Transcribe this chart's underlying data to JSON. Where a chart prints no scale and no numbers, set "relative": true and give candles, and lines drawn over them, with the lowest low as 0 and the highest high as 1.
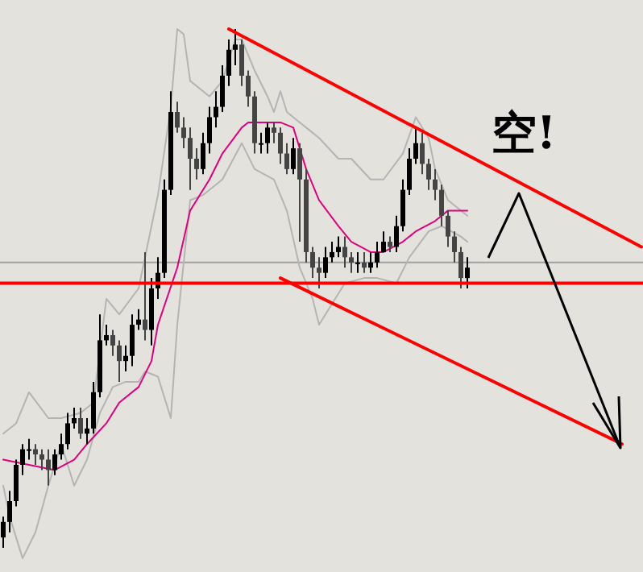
{
  "chart_data": {
    "type": "candlestick",
    "relative": true,
    "categories": [
      null,
      null,
      null,
      null,
      null,
      null,
      null,
      null,
      null,
      null,
      null,
      null,
      null,
      null,
      null,
      null,
      null,
      null,
      null,
      null,
      null,
      null,
      null,
      null,
      null,
      null,
      null,
      null,
      null,
      null,
      null,
      null,
      null,
      null,
      null,
      null,
      null,
      null,
      null,
      null,
      null,
      null,
      null,
      null,
      null,
      null,
      null,
      null,
      null,
      null,
      null,
      null,
      null,
      null,
      null,
      null,
      null,
      null,
      null,
      null,
      null,
      null,
      null,
      null,
      null,
      null,
      null,
      null,
      null,
      null,
      null,
      null,
      null,
      null,
      null,
      null,
      null,
      null,
      null,
      null,
      null,
      null,
      null,
      null,
      null,
      null,
      null,
      null,
      null,
      null,
      null,
      null,
      null,
      null,
      null,
      null,
      null,
      null,
      null,
      null
    ],
    "colors": [
      "#000000",
      "#000000",
      "#000000",
      "#000000",
      "#000000",
      "#444444",
      "#444444",
      "#444444",
      "#000000",
      "#000000",
      "#000000",
      "#000000",
      "#444444",
      "#000000",
      "#000000",
      "#000000",
      "#000000",
      "#444444",
      "#444444",
      "#000000",
      "#000000",
      "#000000",
      "#444444",
      "#000000",
      "#000000",
      "#000000",
      "#000000",
      "#444444",
      "#444444",
      "#444444",
      "#444444",
      "#000000",
      "#000000",
      "#000000",
      "#000000",
      "#000000",
      "#000000",
      "#444444",
      "#444444",
      "#444444",
      "#000000",
      "#000000",
      "#444444",
      "#444444",
      "#444444",
      "#000000",
      "#444444",
      "#444444",
      "#444444",
      "#444444",
      "#000000",
      "#000000",
      "#000000",
      "#444444",
      "#444444",
      "#000000",
      "#444444",
      "#000000",
      "#000000",
      "#000000",
      "#444444",
      "#000000",
      "#000000",
      "#000000",
      "#000000",
      "#444444",
      "#444444",
      "#444444",
      "#444444",
      "#444444",
      "#444444",
      "#444444",
      "#000000",
      null,
      null,
      null,
      null,
      null,
      null,
      null,
      null,
      null,
      null,
      null,
      null,
      null,
      null,
      null,
      null,
      null,
      null,
      null,
      null,
      null,
      null,
      null,
      null,
      null,
      null,
      null
    ],
    "ohlc": [
      [
        0.02,
        0.06,
        0,
        0.05
      ],
      [
        0.05,
        0.11,
        0.03,
        0.09
      ],
      [
        0.09,
        0.17,
        0.08,
        0.16
      ],
      [
        0.16,
        0.2,
        0.14,
        0.19
      ],
      [
        0.19,
        0.21,
        0.17,
        0.19
      ],
      [
        0.19,
        0.2,
        0.16,
        0.18
      ],
      [
        0.18,
        0.19,
        0.15,
        0.17
      ],
      [
        0.17,
        0.19,
        0.12,
        0.15
      ],
      [
        0.15,
        0.19,
        0.14,
        0.18
      ],
      [
        0.18,
        0.22,
        0.17,
        0.2
      ],
      [
        0.2,
        0.26,
        0.19,
        0.24
      ],
      [
        0.24,
        0.27,
        0.23,
        0.25
      ],
      [
        0.25,
        0.27,
        0.21,
        0.22
      ],
      [
        0.22,
        0.25,
        0.2,
        0.23
      ],
      [
        0.23,
        0.32,
        0.22,
        0.3
      ],
      [
        0.3,
        0.45,
        0.29,
        0.4
      ],
      [
        0.4,
        0.43,
        0.39,
        0.41
      ],
      [
        0.41,
        0.42,
        0.37,
        0.39
      ],
      [
        0.39,
        0.4,
        0.32,
        0.36
      ],
      [
        0.36,
        0.39,
        0.34,
        0.37
      ],
      [
        0.37,
        0.45,
        0.35,
        0.43
      ],
      [
        0.43,
        0.46,
        0.42,
        0.44
      ],
      [
        0.44,
        0.57,
        0.4,
        0.42
      ],
      [
        0.42,
        0.52,
        0.39,
        0.5
      ],
      [
        0.5,
        0.56,
        0.48,
        0.53
      ],
      [
        0.53,
        0.71,
        0.52,
        0.69
      ],
      [
        0.69,
        0.88,
        0.68,
        0.84
      ],
      [
        0.84,
        0.86,
        0.8,
        0.81
      ],
      [
        0.81,
        0.83,
        0.77,
        0.79
      ],
      [
        0.79,
        0.81,
        0.69,
        0.75
      ],
      [
        0.75,
        0.77,
        0.71,
        0.73
      ],
      [
        0.73,
        0.8,
        0.72,
        0.78
      ],
      [
        0.78,
        0.85,
        0.76,
        0.83
      ],
      [
        0.83,
        0.88,
        0.81,
        0.85
      ],
      [
        0.85,
        0.93,
        0.84,
        0.91
      ],
      [
        0.91,
        0.98,
        0.89,
        0.96
      ],
      [
        0.96,
        1,
        0.93,
        0.97
      ],
      [
        0.97,
        0.98,
        0.89,
        0.91
      ],
      [
        0.91,
        0.92,
        0.85,
        0.87
      ],
      [
        0.87,
        0.88,
        0.76,
        0.78
      ],
      [
        0.78,
        0.8,
        0.76,
        0.78
      ],
      [
        0.78,
        0.82,
        0.76,
        0.81
      ],
      [
        0.81,
        0.82,
        0.78,
        0.8
      ],
      [
        0.8,
        0.81,
        0.74,
        0.76
      ],
      [
        0.76,
        0.78,
        0.72,
        0.73
      ],
      [
        0.73,
        0.79,
        0.72,
        0.77
      ],
      [
        0.77,
        0.78,
        0.59,
        0.71
      ],
      [
        0.71,
        0.73,
        0.55,
        0.57
      ],
      [
        0.57,
        0.58,
        0.52,
        0.54
      ],
      [
        0.54,
        0.56,
        0.5,
        0.53
      ],
      [
        0.53,
        0.58,
        0.52,
        0.56
      ],
      [
        0.56,
        0.59,
        0.55,
        0.57
      ],
      [
        0.57,
        0.6,
        0.56,
        0.58
      ],
      [
        0.58,
        0.6,
        0.54,
        0.56
      ],
      [
        0.56,
        0.57,
        0.53,
        0.55
      ],
      [
        0.55,
        0.57,
        0.53,
        0.55
      ],
      [
        0.55,
        0.57,
        0.53,
        0.54
      ],
      [
        0.54,
        0.57,
        0.53,
        0.55
      ],
      [
        0.55,
        0.59,
        0.54,
        0.57
      ],
      [
        0.57,
        0.61,
        0.57,
        0.59
      ],
      [
        0.59,
        0.6,
        0.57,
        0.58
      ],
      [
        0.58,
        0.64,
        0.57,
        0.62
      ],
      [
        0.62,
        0.71,
        0.61,
        0.69
      ],
      [
        0.69,
        0.77,
        0.68,
        0.75
      ],
      [
        0.75,
        0.81,
        0.74,
        0.78
      ],
      [
        0.78,
        0.8,
        0.72,
        0.74
      ],
      [
        0.74,
        0.75,
        0.69,
        0.71
      ],
      [
        0.71,
        0.73,
        0.67,
        0.69
      ],
      [
        0.69,
        0.7,
        0.62,
        0.64
      ],
      [
        0.64,
        0.65,
        0.58,
        0.6
      ],
      [
        0.6,
        0.61,
        0.55,
        0.57
      ],
      [
        0.57,
        0.58,
        0.5,
        0.52
      ],
      [
        0.52,
        0.56,
        0.5,
        0.54
      ],
      null,
      null,
      null,
      null,
      null,
      null,
      null,
      null,
      null,
      null,
      null,
      null,
      null,
      null,
      null,
      null,
      null,
      null,
      null,
      null,
      null,
      null,
      null,
      null,
      null,
      null,
      null
    ],
    "series": [
      {
        "type": "line",
        "color": "#b4b4b4",
        "values": [
          0.22,
          null,
          0.24,
          null,
          0.3,
          null,
          null,
          0.25,
          null,
          0.25,
          null,
          null,
          0.26,
          null,
          0.28,
          null,
          0.48,
          null,
          0.45,
          null,
          null,
          0.5,
          null,
          0.62,
          0.68,
          null,
          0.85,
          1,
          0.99,
          0.9,
          null,
          null,
          0.87,
          null,
          0.9,
          null,
          0.98,
          0.98,
          null,
          0.92,
          null,
          0.87,
          0.84,
          0.88,
          0.84,
          null,
          0.82,
          0.81,
          null,
          0.79,
          null,
          null,
          0.75,
          null,
          0.75,
          null,
          null,
          0.71,
          null,
          0.71,
          null,
          null,
          0.76,
          null,
          0.83,
          null,
          0.79,
          0.73,
          0.7,
          0.67,
          null,
          null,
          0.64,
          null,
          null,
          null,
          null,
          null,
          null,
          null,
          null,
          null,
          null,
          null,
          null,
          null,
          null,
          null,
          null,
          null,
          null,
          null,
          null,
          null,
          null,
          null,
          null,
          null,
          null,
          null
        ]
      },
      {
        "type": "line",
        "color": "#b4b4b4",
        "values": [
          0.12,
          0.06,
          null,
          -0.02,
          null,
          0.03,
          null,
          0.12,
          null,
          0.2,
          null,
          0.12,
          null,
          0.17,
          null,
          0.26,
          null,
          0.31,
          null,
          0.32,
          null,
          0.32,
          0.34,
          null,
          0.33,
          null,
          0.25,
          0.43,
          null,
          0.67,
          null,
          0.68,
          null,
          null,
          0.71,
          null,
          null,
          0.78,
          null,
          0.73,
          null,
          null,
          0.71,
          null,
          0.65,
          null,
          0.54,
          null,
          0.48,
          0.43,
          null,
          0.47,
          null,
          0.51,
          null,
          null,
          0.52,
          null,
          0.52,
          null,
          null,
          0.51,
          null,
          0.56,
          null,
          null,
          0.61,
          null,
          0.62,
          null,
          null,
          0.6,
          0.59,
          null,
          null,
          null,
          null,
          null,
          null,
          null,
          null,
          null,
          null,
          null,
          null,
          null,
          null,
          null,
          null,
          null,
          null,
          null,
          null,
          null,
          null,
          null,
          null,
          null,
          null,
          null
        ]
      },
      {
        "type": "line",
        "color": "#e0007f",
        "values": [
          0.17,
          null,
          null,
          null,
          0.16,
          null,
          null,
          null,
          0.15,
          null,
          null,
          0.17,
          null,
          0.2,
          null,
          null,
          0.24,
          null,
          0.28,
          null,
          null,
          0.31,
          null,
          0.36,
          0.43,
          null,
          null,
          0.54,
          null,
          0.65,
          null,
          null,
          0.71,
          null,
          0.76,
          null,
          null,
          0.81,
          0.82,
          null,
          null,
          0.82,
          null,
          0.82,
          null,
          0.81,
          null,
          0.73,
          null,
          0.67,
          null,
          null,
          0.62,
          null,
          0.59,
          null,
          null,
          0.57,
          null,
          0.57,
          null,
          null,
          0.59,
          null,
          0.61,
          null,
          null,
          0.63,
          null,
          0.65,
          null,
          null,
          0.65,
          null,
          null,
          null,
          null,
          null,
          null,
          null,
          null,
          null,
          null,
          null,
          null,
          null,
          null,
          null,
          null,
          null,
          null,
          null,
          null,
          null,
          null,
          null,
          null,
          null,
          null,
          null
        ]
      },
      {
        "type": "line",
        "color": "#ff0000",
        "values": [
          null,
          null,
          null,
          null,
          null,
          null,
          null,
          null,
          null,
          null,
          null,
          null,
          null,
          null,
          null,
          null,
          null,
          null,
          null,
          null,
          null,
          null,
          null,
          null,
          null,
          null,
          null,
          null,
          null,
          null,
          null,
          null,
          null,
          null,
          null,
          1,
          null,
          null,
          null,
          null,
          null,
          null,
          null,
          null,
          null,
          null,
          null,
          null,
          null,
          null,
          null,
          null,
          null,
          null,
          null,
          null,
          null,
          null,
          null,
          null,
          null,
          null,
          null,
          null,
          null,
          null,
          null,
          null,
          null,
          null,
          null,
          null,
          null,
          null,
          null,
          null,
          null,
          null,
          null,
          null,
          null,
          null,
          null,
          null,
          null,
          null,
          null,
          null,
          null,
          null,
          null,
          null,
          null,
          null,
          null,
          null,
          null,
          null,
          null,
          0.58
        ]
      },
      {
        "type": "line",
        "color": "#ff0000",
        "values": [
          null,
          null,
          null,
          null,
          null,
          null,
          null,
          null,
          null,
          null,
          null,
          null,
          null,
          null,
          null,
          null,
          null,
          null,
          null,
          null,
          null,
          null,
          null,
          null,
          null,
          null,
          null,
          null,
          null,
          null,
          null,
          null,
          null,
          null,
          null,
          null,
          null,
          null,
          null,
          null,
          null,
          null,
          null,
          0.52,
          null,
          null,
          null,
          null,
          null,
          null,
          null,
          null,
          null,
          null,
          null,
          null,
          null,
          null,
          null,
          null,
          null,
          null,
          null,
          null,
          null,
          null,
          null,
          null,
          null,
          null,
          null,
          null,
          null,
          null,
          null,
          null,
          null,
          null,
          null,
          null,
          null,
          null,
          null,
          null,
          null,
          null,
          null,
          null,
          null,
          null,
          null,
          null,
          null,
          null,
          null,
          null,
          0.2,
          null,
          null,
          null
        ]
      }
    ],
    "ref_lines": [
      {
        "axis": "y",
        "value": 0.55,
        "color": "#a0a0a0"
      },
      {
        "axis": "y",
        "value": 0.51,
        "color": "#ff0000"
      }
    ],
    "annotations": [
      "空!"
    ]
  }
}
